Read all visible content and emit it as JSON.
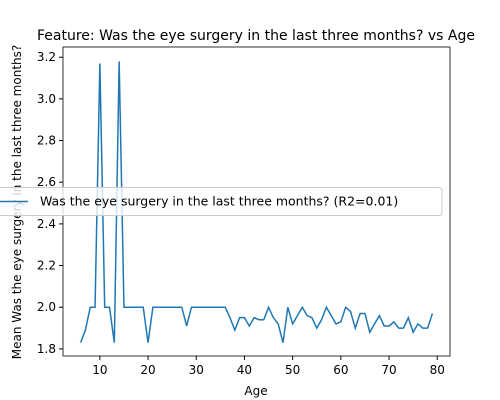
{
  "chart_data": {
    "type": "line",
    "title": "Feature: Was the eye surgery in the last three months? vs Age",
    "xlabel": "Age",
    "ylabel": "Mean Was the eye surgery in the last three months?",
    "x": [
      6,
      7,
      8,
      9,
      10,
      11,
      12,
      13,
      14,
      15,
      16,
      17,
      18,
      19,
      20,
      21,
      22,
      23,
      24,
      25,
      26,
      27,
      28,
      29,
      30,
      31,
      32,
      33,
      34,
      35,
      36,
      37,
      38,
      39,
      40,
      41,
      42,
      43,
      44,
      45,
      46,
      47,
      48,
      49,
      50,
      51,
      52,
      53,
      54,
      55,
      56,
      57,
      58,
      59,
      60,
      61,
      62,
      63,
      64,
      65,
      66,
      67,
      68,
      69,
      70,
      71,
      72,
      73,
      74,
      75,
      76,
      77,
      78,
      79
    ],
    "series": [
      {
        "name": "Was the eye surgery in the last three months? (R2=0.01)",
        "color": "#1f77b4",
        "values": [
          1.83,
          1.89,
          2.0,
          2.0,
          3.17,
          2.0,
          2.0,
          1.83,
          3.18,
          2.0,
          2.0,
          2.0,
          2.0,
          2.0,
          1.83,
          2.0,
          2.0,
          2.0,
          2.0,
          2.0,
          2.0,
          2.0,
          1.91,
          2.0,
          2.0,
          2.0,
          2.0,
          2.0,
          2.0,
          2.0,
          2.0,
          1.95,
          1.89,
          1.95,
          1.95,
          1.91,
          1.95,
          1.94,
          1.94,
          2.0,
          1.95,
          1.92,
          1.83,
          2.0,
          1.92,
          1.96,
          2.0,
          1.96,
          1.95,
          1.9,
          1.94,
          2.0,
          1.96,
          1.92,
          1.93,
          2.0,
          1.98,
          1.9,
          1.97,
          1.97,
          1.88,
          1.92,
          1.96,
          1.91,
          1.91,
          1.93,
          1.9,
          1.9,
          1.95,
          1.88,
          1.92,
          1.9,
          1.9,
          1.97
        ]
      }
    ],
    "xlim": [
      2.35,
      82.65
    ],
    "xticks": [
      10,
      20,
      30,
      40,
      50,
      60,
      70,
      80
    ],
    "ylim": [
      1.766,
      3.249
    ],
    "yticks": [
      {
        "value": 1.8,
        "label": "1.8"
      },
      {
        "value": 2.0,
        "label": "2.0"
      },
      {
        "value": 2.2,
        "label": "2.2"
      },
      {
        "value": 2.4,
        "label": "2.4"
      },
      {
        "value": 2.6,
        "label": "2.6"
      },
      {
        "value": 2.8,
        "label": "2.8"
      },
      {
        "value": 3.0,
        "label": "3.0"
      },
      {
        "value": 3.2,
        "label": "3.2"
      }
    ],
    "legend": "center left"
  }
}
